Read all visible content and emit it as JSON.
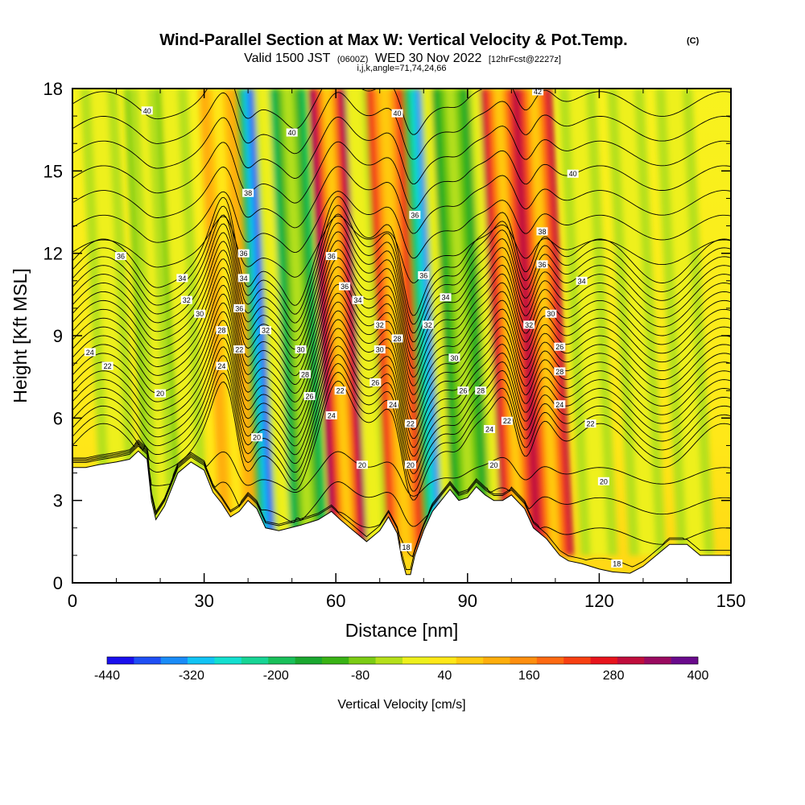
{
  "title": {
    "main": "Wind-Parallel Section at Max W: Vertical Velocity & Pot.Temp.",
    "copyright": "(C)",
    "valid_prefix": "Valid 1500 JST",
    "valid_z": "(0600Z)",
    "valid_date": "WED 30 Nov 2022",
    "forecast": "[12hrFcst@2227z]",
    "indices": "i,j,k,angle=71,74,24,66"
  },
  "chart_data": {
    "type": "heatmap",
    "xlabel": "Distance [nm]",
    "ylabel": "Height [Kft MSL]",
    "xlim": [
      0,
      150
    ],
    "ylim": [
      0,
      18
    ],
    "x_ticks": [
      0,
      30,
      60,
      90,
      120,
      150
    ],
    "y_ticks": [
      0,
      3,
      6,
      9,
      12,
      15,
      18
    ],
    "x_tick_labels": [
      "0",
      "30",
      "60",
      "90",
      "120",
      "150"
    ],
    "y_tick_labels": [
      "0",
      "3",
      "6",
      "9",
      "12",
      "15",
      "18"
    ],
    "colorbar": {
      "label": "Vertical Velocity [cm/s]",
      "range": [
        -440,
        400
      ],
      "tick_values": [
        "-440",
        "-320",
        "-200",
        "-80",
        "40",
        "160",
        "280",
        "400"
      ],
      "colors": [
        "#1a10ee",
        "#1f4ff5",
        "#1a8cf8",
        "#12c4f5",
        "#13e0d0",
        "#17d595",
        "#19c05a",
        "#1aa82f",
        "#39b315",
        "#7ccc14",
        "#b5e01a",
        "#eef01c",
        "#ffe818",
        "#ffcb10",
        "#ffae0c",
        "#ff8f0f",
        "#ff6a12",
        "#f84012",
        "#e8141c",
        "#c00d3c",
        "#9a0a60",
        "#6a0a8c"
      ]
    },
    "terrain_profile": [
      {
        "x": 0,
        "h": 4.2
      },
      {
        "x": 3,
        "h": 4.2
      },
      {
        "x": 6,
        "h": 4.3
      },
      {
        "x": 10,
        "h": 4.4
      },
      {
        "x": 13,
        "h": 4.5
      },
      {
        "x": 15,
        "h": 4.8
      },
      {
        "x": 17,
        "h": 4.5
      },
      {
        "x": 18,
        "h": 3.0
      },
      {
        "x": 19,
        "h": 2.3
      },
      {
        "x": 21,
        "h": 2.8
      },
      {
        "x": 24,
        "h": 4.0
      },
      {
        "x": 27,
        "h": 4.4
      },
      {
        "x": 30,
        "h": 4.1
      },
      {
        "x": 32,
        "h": 3.3
      },
      {
        "x": 34,
        "h": 2.9
      },
      {
        "x": 36,
        "h": 2.4
      },
      {
        "x": 38,
        "h": 2.6
      },
      {
        "x": 40,
        "h": 3.0
      },
      {
        "x": 42,
        "h": 2.7
      },
      {
        "x": 44,
        "h": 2.0
      },
      {
        "x": 47,
        "h": 1.9
      },
      {
        "x": 52,
        "h": 2.1
      },
      {
        "x": 56,
        "h": 2.3
      },
      {
        "x": 59,
        "h": 2.6
      },
      {
        "x": 61,
        "h": 2.3
      },
      {
        "x": 64,
        "h": 1.9
      },
      {
        "x": 67,
        "h": 1.5
      },
      {
        "x": 70,
        "h": 1.9
      },
      {
        "x": 72,
        "h": 2.4
      },
      {
        "x": 74,
        "h": 1.8
      },
      {
        "x": 75,
        "h": 0.9
      },
      {
        "x": 76,
        "h": 0.3
      },
      {
        "x": 77,
        "h": 0.3
      },
      {
        "x": 78,
        "h": 1.0
      },
      {
        "x": 80,
        "h": 1.9
      },
      {
        "x": 82,
        "h": 2.6
      },
      {
        "x": 84,
        "h": 3.0
      },
      {
        "x": 86,
        "h": 3.4
      },
      {
        "x": 88,
        "h": 3.0
      },
      {
        "x": 90,
        "h": 3.1
      },
      {
        "x": 92,
        "h": 3.5
      },
      {
        "x": 94,
        "h": 3.2
      },
      {
        "x": 96,
        "h": 3.0
      },
      {
        "x": 98,
        "h": 3.0
      },
      {
        "x": 100,
        "h": 3.2
      },
      {
        "x": 103,
        "h": 2.7
      },
      {
        "x": 105,
        "h": 2.0
      },
      {
        "x": 108,
        "h": 1.6
      },
      {
        "x": 111,
        "h": 1.0
      },
      {
        "x": 113,
        "h": 0.8
      },
      {
        "x": 116,
        "h": 0.7
      },
      {
        "x": 120,
        "h": 0.5
      },
      {
        "x": 123,
        "h": 0.4
      },
      {
        "x": 127,
        "h": 0.35
      },
      {
        "x": 130,
        "h": 0.6
      },
      {
        "x": 133,
        "h": 1.0
      },
      {
        "x": 136,
        "h": 1.4
      },
      {
        "x": 140,
        "h": 1.4
      },
      {
        "x": 143,
        "h": 1.0
      },
      {
        "x": 147,
        "h": 1.0
      },
      {
        "x": 150,
        "h": 1.0
      }
    ],
    "updraft_bands": [
      {
        "x": 35,
        "w": 130
      },
      {
        "x": 60,
        "w": 330
      },
      {
        "x": 73,
        "w": 260
      },
      {
        "x": 99,
        "w": 300
      },
      {
        "x": 107,
        "w": 320
      }
    ],
    "downdraft_bands": [
      {
        "x": 39,
        "w": -400
      },
      {
        "x": 51,
        "w": -180
      },
      {
        "x": 77,
        "w": -360
      },
      {
        "x": 103,
        "w": -220
      },
      {
        "x": 18,
        "w": -60
      },
      {
        "x": 88,
        "w": -140
      }
    ],
    "contour_labels": [
      {
        "x": 17,
        "y": 17.2,
        "text": "40"
      },
      {
        "x": 50,
        "y": 16.4,
        "text": "40"
      },
      {
        "x": 74,
        "y": 17.1,
        "text": "40"
      },
      {
        "x": 106,
        "y": 17.9,
        "text": "42"
      },
      {
        "x": 114,
        "y": 14.9,
        "text": "40"
      },
      {
        "x": 11,
        "y": 11.9,
        "text": "36"
      },
      {
        "x": 40,
        "y": 14.2,
        "text": "38"
      },
      {
        "x": 78,
        "y": 13.4,
        "text": "36"
      },
      {
        "x": 107,
        "y": 12.8,
        "text": "38"
      },
      {
        "x": 39,
        "y": 12.0,
        "text": "36"
      },
      {
        "x": 59,
        "y": 11.9,
        "text": "36"
      },
      {
        "x": 107,
        "y": 11.6,
        "text": "36"
      },
      {
        "x": 25,
        "y": 11.1,
        "text": "34"
      },
      {
        "x": 39,
        "y": 11.1,
        "text": "34"
      },
      {
        "x": 62,
        "y": 10.8,
        "text": "36"
      },
      {
        "x": 80,
        "y": 11.2,
        "text": "36"
      },
      {
        "x": 116,
        "y": 11.0,
        "text": "34"
      },
      {
        "x": 26,
        "y": 10.3,
        "text": "32"
      },
      {
        "x": 38,
        "y": 10.0,
        "text": "36"
      },
      {
        "x": 65,
        "y": 10.3,
        "text": "34"
      },
      {
        "x": 85,
        "y": 10.4,
        "text": "34"
      },
      {
        "x": 109,
        "y": 9.8,
        "text": "30"
      },
      {
        "x": 29,
        "y": 9.8,
        "text": "30"
      },
      {
        "x": 70,
        "y": 9.4,
        "text": "32"
      },
      {
        "x": 81,
        "y": 9.4,
        "text": "32"
      },
      {
        "x": 104,
        "y": 9.4,
        "text": "32"
      },
      {
        "x": 34,
        "y": 9.2,
        "text": "28"
      },
      {
        "x": 44,
        "y": 9.2,
        "text": "32"
      },
      {
        "x": 74,
        "y": 8.9,
        "text": "28"
      },
      {
        "x": 111,
        "y": 8.6,
        "text": "26"
      },
      {
        "x": 4,
        "y": 8.4,
        "text": "24"
      },
      {
        "x": 38,
        "y": 8.5,
        "text": "22"
      },
      {
        "x": 52,
        "y": 8.5,
        "text": "30"
      },
      {
        "x": 70,
        "y": 8.5,
        "text": "30"
      },
      {
        "x": 87,
        "y": 8.2,
        "text": "30"
      },
      {
        "x": 8,
        "y": 7.9,
        "text": "22"
      },
      {
        "x": 34,
        "y": 7.9,
        "text": "24"
      },
      {
        "x": 53,
        "y": 7.6,
        "text": "28"
      },
      {
        "x": 69,
        "y": 7.3,
        "text": "26"
      },
      {
        "x": 111,
        "y": 7.7,
        "text": "28"
      },
      {
        "x": 20,
        "y": 6.9,
        "text": "20"
      },
      {
        "x": 54,
        "y": 6.8,
        "text": "26"
      },
      {
        "x": 61,
        "y": 7.0,
        "text": "22"
      },
      {
        "x": 89,
        "y": 7.0,
        "text": "26"
      },
      {
        "x": 93,
        "y": 7.0,
        "text": "28"
      },
      {
        "x": 73,
        "y": 6.5,
        "text": "24"
      },
      {
        "x": 111,
        "y": 6.5,
        "text": "24"
      },
      {
        "x": 59,
        "y": 6.1,
        "text": "24"
      },
      {
        "x": 77,
        "y": 5.8,
        "text": "22"
      },
      {
        "x": 95,
        "y": 5.6,
        "text": "24"
      },
      {
        "x": 99,
        "y": 5.9,
        "text": "22"
      },
      {
        "x": 118,
        "y": 5.8,
        "text": "22"
      },
      {
        "x": 42,
        "y": 5.3,
        "text": "20"
      },
      {
        "x": 66,
        "y": 4.3,
        "text": "20"
      },
      {
        "x": 77,
        "y": 4.3,
        "text": "20"
      },
      {
        "x": 96,
        "y": 4.3,
        "text": "20"
      },
      {
        "x": 121,
        "y": 3.7,
        "text": "20"
      },
      {
        "x": 76,
        "y": 1.3,
        "text": "18"
      },
      {
        "x": 124,
        "y": 0.7,
        "text": "18"
      }
    ]
  }
}
